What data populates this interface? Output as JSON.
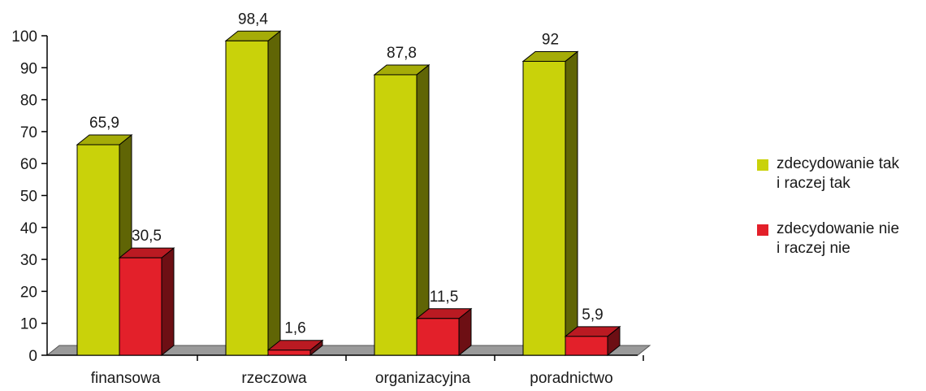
{
  "chart_data": {
    "type": "bar",
    "categories": [
      "finansowa",
      "rzeczowa",
      "organizacyjna",
      "poradnictwo"
    ],
    "series": [
      {
        "name": "zdecydowanie tak i raczej tak",
        "values": [
          65.9,
          98.4,
          87.8,
          92
        ],
        "labels": [
          "65,9",
          "98,4",
          "87,8",
          "92"
        ],
        "color": "#c9d20a"
      },
      {
        "name": "zdecydowanie nie i raczej nie",
        "values": [
          30.5,
          1.6,
          11.5,
          5.9
        ],
        "labels": [
          "30,5",
          "1,6",
          "11,5",
          "5,9"
        ],
        "color": "#e3202a"
      }
    ],
    "ylim": [
      0,
      100
    ],
    "yticks": [
      0,
      10,
      20,
      30,
      40,
      50,
      60,
      70,
      80,
      90,
      100
    ],
    "legend_position": "right",
    "three_d": true,
    "grid": false
  },
  "legend": {
    "items": [
      {
        "line1": "zdecydowanie tak",
        "line2": "i raczej tak",
        "color": "#c9d20a"
      },
      {
        "line1": "zdecydowanie nie",
        "line2": "i raczej nie",
        "color": "#e3202a"
      }
    ]
  }
}
